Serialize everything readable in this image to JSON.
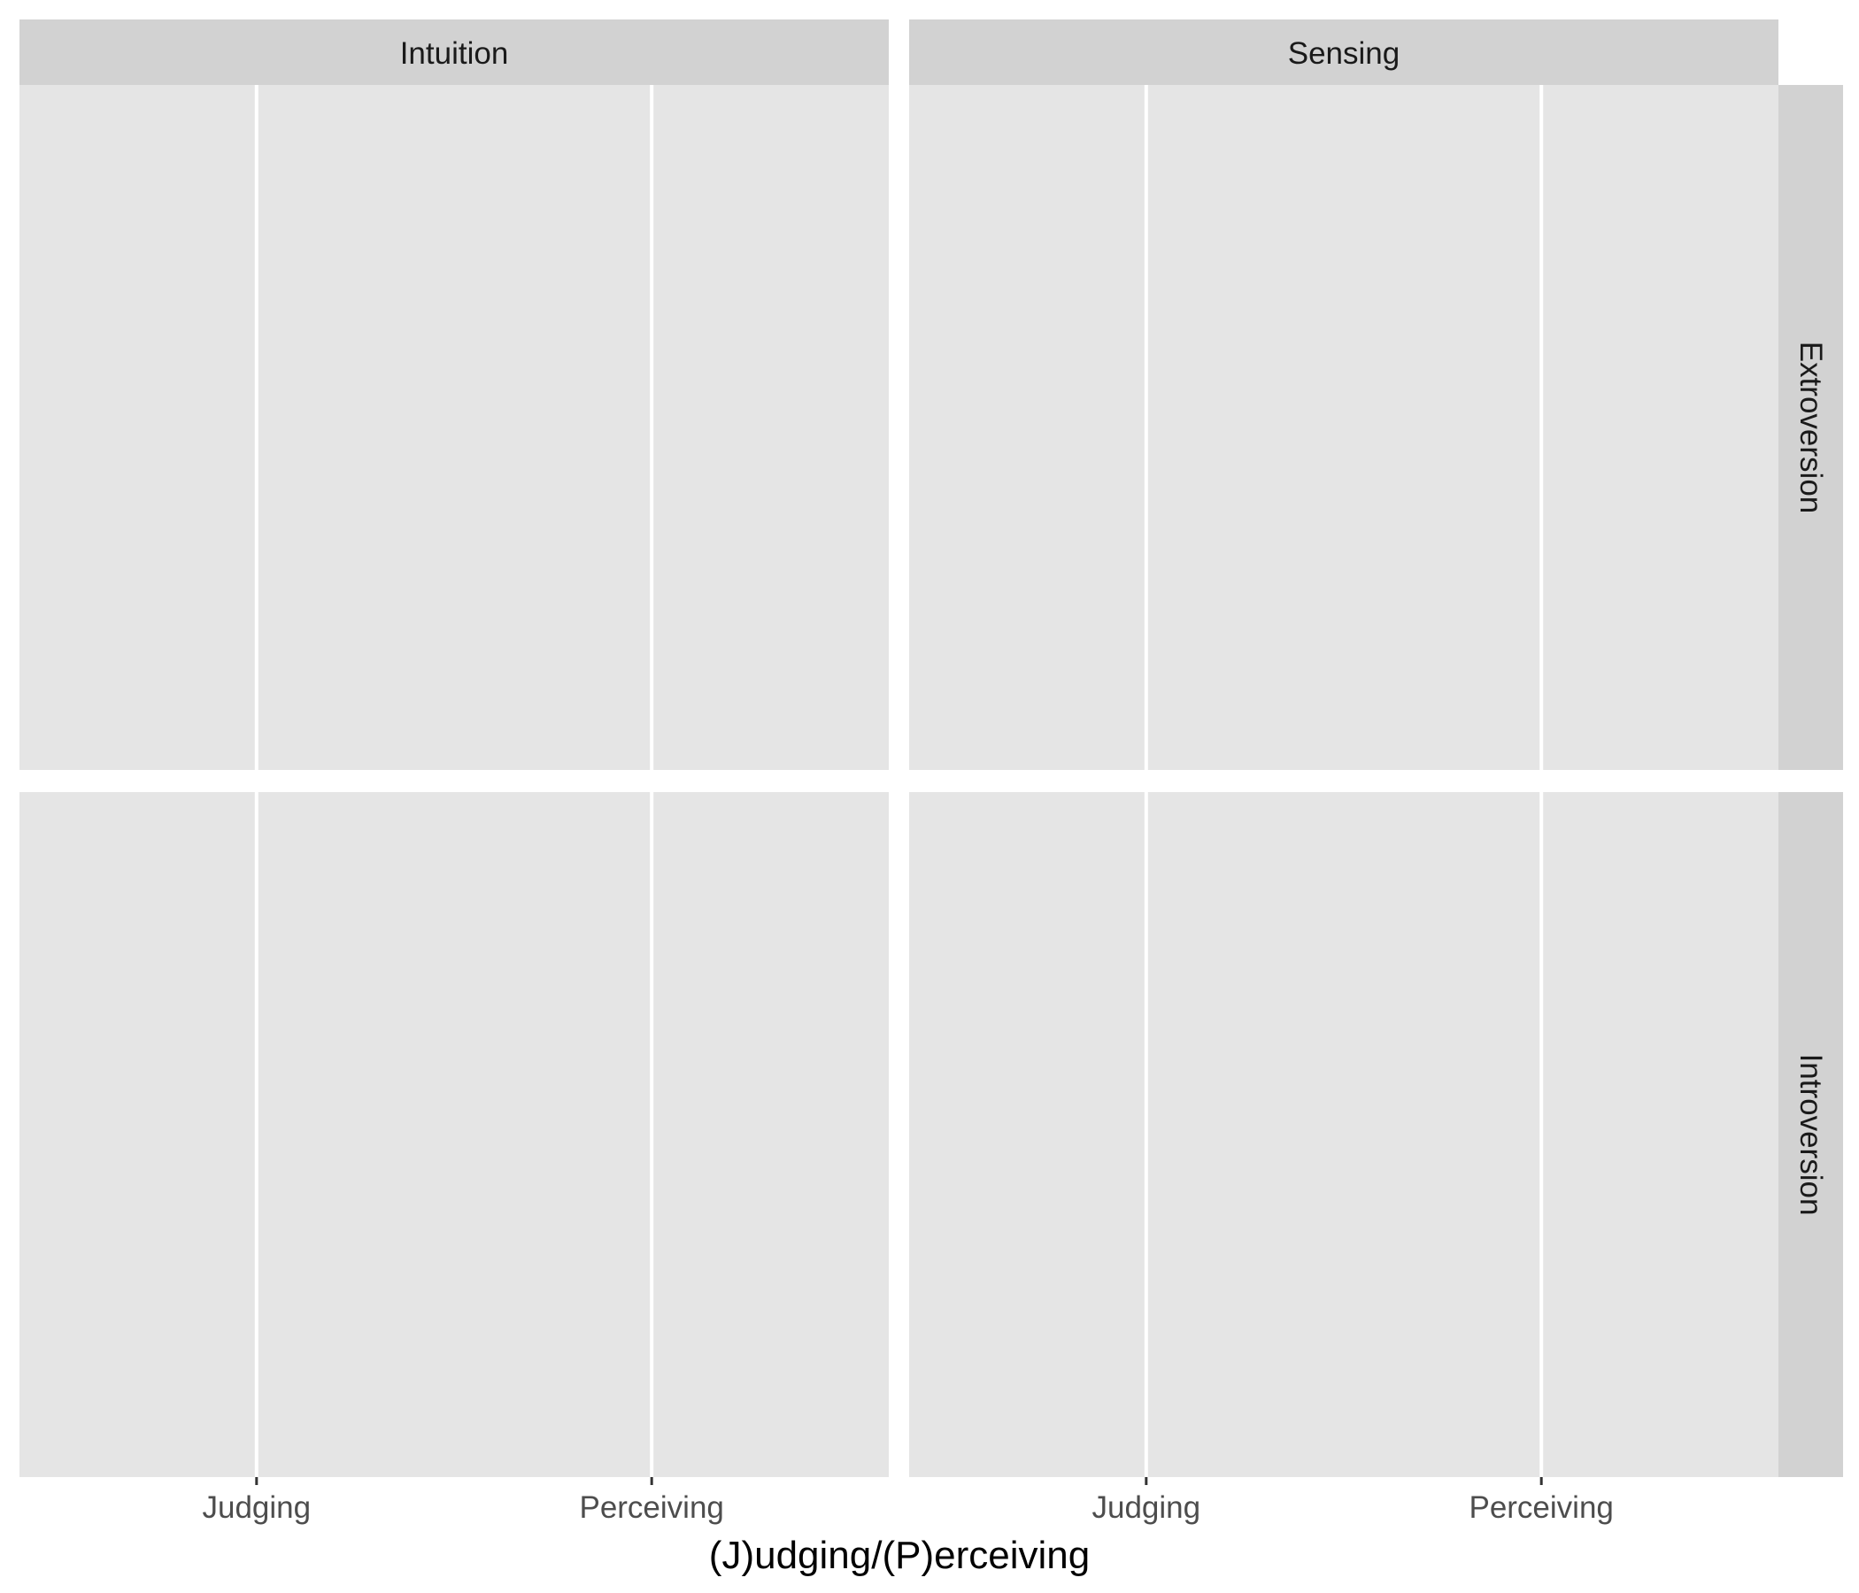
{
  "chart_data": {
    "type": "bar",
    "facet": {
      "columns_label": "",
      "rows_label": "",
      "columns": [
        "Intuition",
        "Sensing"
      ],
      "rows": [
        "Extroversion",
        "Introversion"
      ]
    },
    "categories": [
      "Judging",
      "Perceiving"
    ],
    "series": [],
    "title": "",
    "xlabel": "(J)udging/(P)erceiving",
    "ylabel": "",
    "grid": true,
    "legend": "none"
  },
  "colors": {
    "panel_background": "#e5e5e5",
    "strip_background": "#d2d2d2",
    "gridline": "#ffffff",
    "tick_label": "#4d4d4d",
    "strip_text": "#1a1a1a",
    "axis_title": "#000000",
    "tick_mark": "#333333"
  }
}
